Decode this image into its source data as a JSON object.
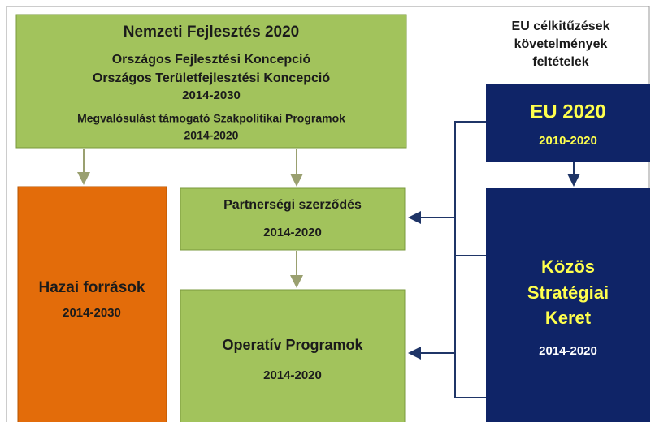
{
  "top_box": {
    "title": "Nemzeti Fejlesztés 2020",
    "line1": "Országos Fejlesztési Koncepció",
    "line2": "Országos Területfejlesztési Koncepció",
    "period1": "2014-2030",
    "line3": "Megvalósulást támogató Szakpolitikai Programok",
    "period2": "2014-2020"
  },
  "domestic": {
    "title": "Hazai források",
    "period": "2014-2030"
  },
  "partnership": {
    "title": "Partnerségi szerződés",
    "period": "2014-2020"
  },
  "operative": {
    "title": "Operatív Programok",
    "period": "2014-2020"
  },
  "eu_note": {
    "line1": "EU célkitűzések",
    "line2": "követelmények",
    "line3": "feltételek"
  },
  "eu2020": {
    "title": "EU 2020",
    "period": "2010-2020"
  },
  "csf": {
    "line1": "Közös",
    "line2": "Stratégiai",
    "line3": "Keret",
    "period": "2014-2020"
  }
}
